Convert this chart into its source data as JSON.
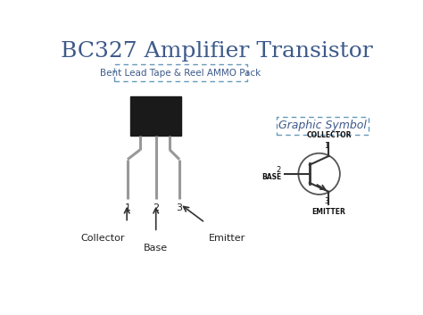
{
  "title": "BC327 Amplifier Transistor",
  "title_color": "#3d5a8a",
  "title_fontsize": 18,
  "bg_color": "#ffffff",
  "box1_text": "Bent Lead Tape & Reel AMMO Pack",
  "box2_text": "Graphic Symbol",
  "box_edge_color": "#6699bb",
  "box_text_color": "#3d5a8a",
  "pin_label_color": "#222222",
  "terminal_color": "#222222",
  "transistor_label_color": "#111111",
  "body_color": "#1a1a1a",
  "pin_color": "#999999",
  "arrow_color": "#333333"
}
